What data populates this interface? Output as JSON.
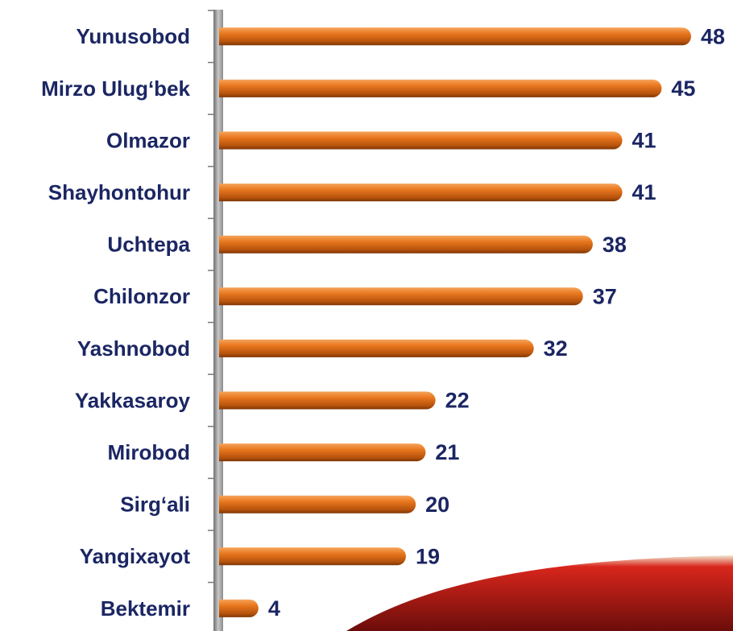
{
  "chart_data": {
    "type": "bar",
    "orientation": "horizontal",
    "categories": [
      "Yunusobod",
      "Mirzo Ulug‘bek",
      "Olmazor",
      "Shayhontohur",
      "Uchtepa",
      "Chilonzor",
      "Yashnobod",
      "Yakkasaroy",
      "Mirobod",
      "Sirg‘ali",
      "Yangixayot",
      "Bektemir"
    ],
    "values": [
      48,
      45,
      41,
      41,
      38,
      37,
      32,
      22,
      21,
      20,
      19,
      4
    ],
    "color": "#e8761e"
  }
}
